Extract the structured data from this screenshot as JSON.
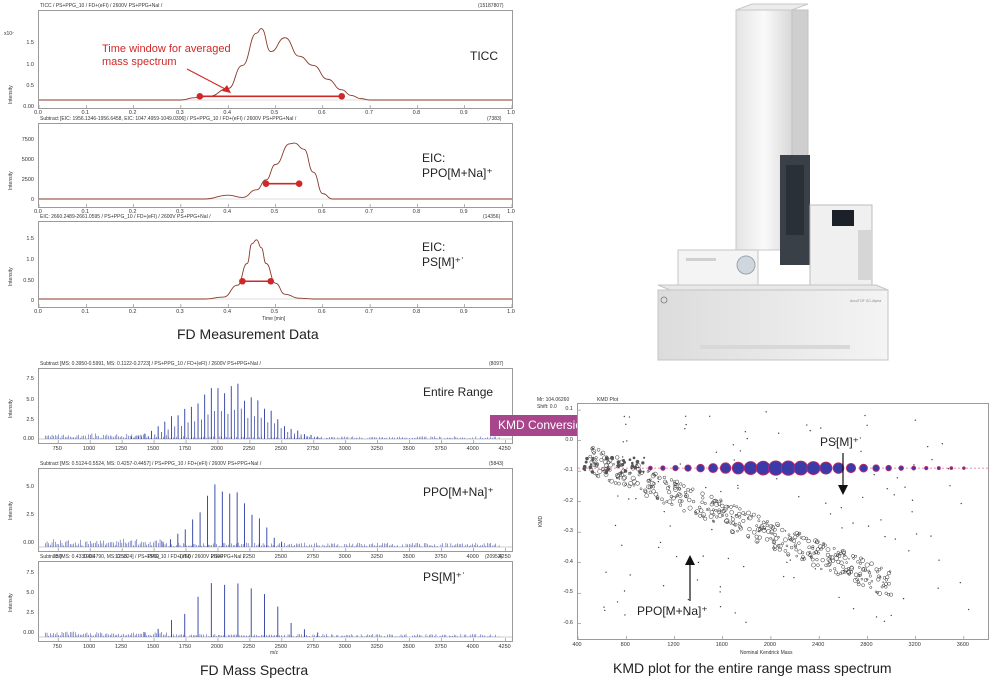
{
  "left_top": {
    "caption": "FD Measurement Data",
    "time_axis_label": "Time [min]",
    "time_ticks": [
      "0.0",
      "0.1",
      "0.2",
      "0.3",
      "0.4",
      "0.5",
      "0.6",
      "0.7",
      "0.8",
      "0.9",
      "1.0"
    ],
    "panels": [
      {
        "header": "TICC / PS+PPG_10 / FD+(eFI) / 2600V PS+PPG+NaI /",
        "count": "(15187807)",
        "exponent": "x10⁷",
        "ylabel": "Intensity",
        "yticks": [
          "1.5",
          "1.0",
          "0.5",
          "0.00"
        ],
        "label": "TICC",
        "annotation": "Time window for averaged mass spectrum"
      },
      {
        "header": "Subtract [EIC: 1956.1346-1956.6458, EIC: 1047.4959-1049.0306] / PS+PPG_10 / FD+(eFI) / 2600V PS+PPG+NaI /",
        "count": "(7383)",
        "ylabel": "Intensity",
        "yticks": [
          "7500",
          "5000",
          "2500",
          "0"
        ],
        "label_line1": "EIC:",
        "label_line2": "PPO[M+Na]⁺"
      },
      {
        "header": "EIC: 2660.2489-2661.0595 / PS+PPG_10 / FD+(eFI) / 2600V PS+PPG+NaI /",
        "count": "(14356)",
        "ylabel": "Intensity",
        "yticks": [
          "1.5",
          "1.0",
          "0.50",
          "0"
        ],
        "label_line1": "EIC:",
        "label_line2": "PS[M]⁺˙"
      }
    ]
  },
  "left_bottom": {
    "caption": "FD Mass Spectra",
    "mz_axis_label": "m/z",
    "mz_ticks": [
      "750",
      "1000",
      "1250",
      "1500",
      "1750",
      "2000",
      "2250",
      "2500",
      "2750",
      "3000",
      "3250",
      "3500",
      "3750",
      "4000",
      "4250"
    ],
    "panels": [
      {
        "header": "Subtract [MS: 0.3950-0.5991, MS: 0.1122-0.2723] / PS+PPG_10 / FD+(eFI) / 2600V PS+PPG+NaI /",
        "count": "(8097)",
        "ylabel": "Intensity",
        "yticks": [
          "7.5",
          "5.0",
          "2.5",
          "0.00"
        ],
        "label": "Entire Range"
      },
      {
        "header": "Subtract [MS: 0.5124-0.5524, MS: 0.4257-0.4457] / PS+PPG_10 / FD+(eFI) / 2600V PS+PPG+NaI /",
        "count": "(5843)",
        "ylabel": "Intensity",
        "yticks": [
          "5.0",
          "2.5",
          "0.00"
        ],
        "label": "PPO[M+Na]⁺"
      },
      {
        "header": "Subtract [MS: 0.4330-0.4790, MS: 0.5324] / PS+PPG_10 / FD+(eFI) / 2600V PS+PPG+NaI /",
        "count": "(20952)",
        "ylabel": "Intensity",
        "yticks": [
          "7.5",
          "5.0",
          "2.5",
          "0.00"
        ],
        "label": "PS[M]⁺˙"
      }
    ]
  },
  "kmd": {
    "button": "KMD Conversion",
    "header_line1": "Mr: 104.06260",
    "header_line2": "Shift: 0.0",
    "plot_title": "KMD Plot",
    "ylabel": "KMD",
    "xlabel": "Nominal Kendrick Mass",
    "xticks": [
      "400",
      "800",
      "1200",
      "1600",
      "2000",
      "2400",
      "2800",
      "3200",
      "3600"
    ],
    "yticks": [
      "0.1",
      "0.0",
      "-0.1",
      "-0.2",
      "-0.3",
      "-0.4",
      "-0.5",
      "-0.6"
    ],
    "label_ps": "PS[M]⁺˙",
    "label_ppo": "PPO[M+Na]⁺",
    "caption": "KMD plot for the entire range mass spectrum"
  },
  "instrument": {
    "badge": "AccuTOF GC-Alpha"
  },
  "colors": {
    "trace": "#8a3a2a",
    "spectrum": "#2a3aa0",
    "window_marker": "#d02828",
    "kmd_button": "#a8468c",
    "ps_points_fill": "#3a3aa8",
    "ps_points_ring": "#c02868"
  },
  "chart_data": [
    {
      "type": "line",
      "x_unit_label": "Time [min]",
      "ylabel": "Intensity",
      "xlim": [
        0.0,
        1.0
      ],
      "ylim": [
        0,
        1.8
      ],
      "x": [
        0.0,
        0.3,
        0.33,
        0.36,
        0.4,
        0.43,
        0.46,
        0.47,
        0.49,
        0.52,
        0.55,
        0.58,
        0.61,
        0.64,
        0.66,
        0.68,
        0.7,
        1.0
      ],
      "y": [
        0.0,
        0.0,
        0.05,
        0.08,
        0.25,
        0.75,
        1.45,
        1.55,
        1.05,
        1.35,
        0.95,
        0.75,
        0.45,
        0.22,
        0.1,
        0.03,
        0.0,
        0.0
      ],
      "time_window": [
        0.34,
        0.64
      ]
    },
    {
      "type": "line",
      "x_unit_label": "Time [min]",
      "ylabel": "Intensity",
      "xlim": [
        0.0,
        1.0
      ],
      "ylim": [
        -500,
        9000
      ],
      "x": [
        0.0,
        0.35,
        0.4,
        0.43,
        0.46,
        0.48,
        0.5,
        0.53,
        0.54,
        0.56,
        0.58,
        0.6,
        0.62,
        1.0
      ],
      "y": [
        0,
        0,
        500,
        200,
        1200,
        2500,
        4500,
        7200,
        7300,
        6500,
        3500,
        700,
        0,
        0
      ],
      "time_window": [
        0.48,
        0.55
      ]
    },
    {
      "type": "line",
      "x_unit_label": "Time [min]",
      "ylabel": "Intensity",
      "xlim": [
        0.0,
        1.0
      ],
      "ylim": [
        0,
        1.8
      ],
      "x": [
        0.0,
        0.35,
        0.39,
        0.42,
        0.44,
        0.45,
        0.46,
        0.47,
        0.48,
        0.5,
        0.52,
        0.55,
        0.58,
        1.0
      ],
      "y": [
        0.0,
        0.0,
        0.05,
        0.35,
        0.9,
        1.4,
        1.5,
        1.3,
        0.9,
        0.4,
        0.12,
        0.02,
        0.0,
        0.0
      ],
      "time_window": [
        0.43,
        0.49
      ]
    },
    {
      "type": "bar",
      "x_unit_label": "m/z",
      "xlim": [
        600,
        4300
      ],
      "ylim": [
        0,
        8.5
      ],
      "envelope": {
        "center": 2050,
        "width": 420,
        "max": 7.5
      },
      "peak_spacing": 52
    },
    {
      "type": "bar",
      "x_unit_label": "m/z",
      "xlim": [
        600,
        4300
      ],
      "ylim": [
        0,
        6
      ],
      "envelope": {
        "center": 2050,
        "width": 300,
        "max": 5.3
      },
      "peak_spacing": 58
    },
    {
      "type": "bar",
      "x_unit_label": "m/z",
      "xlim": [
        600,
        4300
      ],
      "ylim": [
        0,
        8.5
      ],
      "envelope": {
        "center": 2100,
        "width": 420,
        "max": 7.5
      },
      "peak_spacing": 104
    },
    {
      "type": "scatter",
      "xlabel": "Nominal Kendrick Mass",
      "ylabel": "KMD",
      "xlim": [
        400,
        3800
      ],
      "ylim": [
        -0.65,
        0.12
      ],
      "series": [
        {
          "name": "PS[M]⁺˙",
          "x_range": [
            1000,
            3600
          ],
          "kmd": -0.09
        },
        {
          "name": "PPO[M+Na]⁺",
          "x_range": [
            500,
            3000
          ],
          "kmd_start": -0.06,
          "kmd_slope_per_1000": -0.165
        }
      ]
    }
  ]
}
